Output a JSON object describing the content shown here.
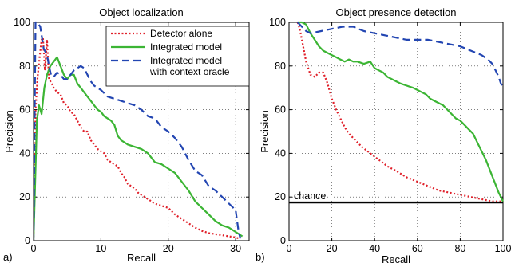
{
  "chart_data": [
    {
      "type": "line",
      "panel_label": "a)",
      "title": "Object localization",
      "xlabel": "Recall",
      "ylabel": "Precision",
      "xlim": [
        0,
        32
      ],
      "ylim": [
        0,
        100
      ],
      "xticks": [
        0,
        10,
        20,
        30
      ],
      "yticks": [
        0,
        20,
        40,
        60,
        80,
        100
      ],
      "grid": true,
      "legend_position": "top-right",
      "series": [
        {
          "name": "Detector alone",
          "style": "dotted",
          "color": "#e0202a",
          "x": [
            0.0,
            0.3,
            0.6,
            0.9,
            1.2,
            1.4,
            1.7,
            2.0,
            2.3,
            2.7,
            3.0,
            3.5,
            4.0,
            4.5,
            5.0,
            5.5,
            6.0,
            6.5,
            7.0,
            7.5,
            8.0,
            8.5,
            9.0,
            9.5,
            10.0,
            10.5,
            11.0,
            11.5,
            12.0,
            12.5,
            13.0,
            13.5,
            14.0,
            14.5,
            15.0,
            15.5,
            16.0,
            16.5,
            17.0,
            17.5,
            18.0,
            19.0,
            20.0,
            21.0,
            22.0,
            23.0,
            24.0,
            25.0,
            26.0,
            27.0,
            28.0,
            29.0,
            30.0,
            30.5
          ],
          "y": [
            0,
            60,
            75,
            84,
            92,
            93,
            78,
            92,
            74,
            72,
            70,
            68,
            67,
            63,
            62,
            59,
            58,
            55,
            52,
            50,
            50,
            46,
            44,
            42,
            41,
            40,
            37,
            36,
            35,
            34,
            31,
            29,
            26,
            25,
            24,
            22,
            21,
            20,
            19,
            18,
            17,
            16,
            15,
            12,
            10,
            8,
            6,
            4.5,
            3.5,
            3,
            2.5,
            2,
            1.5,
            1
          ]
        },
        {
          "name": "Integrated model",
          "style": "solid",
          "color": "#3cb534",
          "x": [
            0.0,
            0.5,
            0.8,
            1.2,
            1.6,
            2.0,
            2.5,
            3.0,
            3.5,
            4.0,
            4.5,
            5.0,
            5.5,
            6.0,
            6.5,
            7.0,
            7.5,
            8.0,
            8.5,
            9.0,
            9.5,
            10.0,
            10.5,
            11.0,
            11.5,
            12.0,
            12.5,
            13.0,
            13.5,
            14.0,
            15.0,
            16.0,
            17.0,
            18.0,
            19.0,
            20.0,
            21.0,
            22.0,
            23.0,
            24.0,
            25.0,
            26.0,
            27.0,
            28.0,
            29.0,
            30.0,
            31.0
          ],
          "y": [
            0,
            55,
            62,
            58,
            70,
            76,
            80,
            82,
            84,
            80,
            76,
            74,
            76,
            76,
            72,
            70,
            68,
            66,
            64,
            62,
            60,
            59,
            57,
            56,
            55,
            53,
            48,
            46,
            45,
            44,
            43,
            42,
            40,
            36,
            35,
            33,
            31,
            27,
            23,
            18,
            15,
            12,
            9,
            7,
            6,
            4,
            2
          ]
        },
        {
          "name": "Integrated model\nwith context oracle",
          "style": "dashed",
          "color": "#2346b2",
          "x": [
            0.0,
            0.3,
            0.6,
            1.0,
            1.5,
            2.0,
            2.3,
            2.6,
            3.0,
            3.5,
            4.0,
            4.5,
            5.0,
            6.0,
            7.0,
            7.5,
            8.0,
            8.5,
            9.0,
            9.5,
            10.0,
            11.0,
            12.0,
            13.0,
            14.0,
            15.0,
            16.0,
            17.0,
            18.0,
            19.0,
            20.0,
            21.0,
            22.0,
            23.0,
            24.0,
            25.0,
            26.0,
            27.0,
            28.0,
            29.0,
            30.0,
            30.4,
            30.7
          ],
          "y": [
            0,
            100,
            100,
            98,
            88,
            85,
            80,
            76,
            75,
            77,
            76,
            74,
            74,
            78,
            80,
            79,
            76,
            73,
            71,
            70,
            69,
            66,
            65,
            64,
            63,
            62,
            60,
            57,
            56,
            52,
            50,
            47,
            43,
            37,
            32,
            30,
            25,
            23,
            20,
            17,
            14,
            5,
            1
          ]
        }
      ]
    },
    {
      "type": "line",
      "panel_label": "b)",
      "title": "Object presence detection",
      "xlabel": "Recall",
      "ylabel": "Precision",
      "xlim": [
        0,
        100
      ],
      "ylim": [
        0,
        100
      ],
      "xticks": [
        0,
        20,
        40,
        60,
        80,
        100
      ],
      "yticks": [
        0,
        20,
        40,
        60,
        80,
        100
      ],
      "grid": true,
      "reference_line": {
        "label": "chance",
        "y": 17.5
      },
      "series": [
        {
          "name": "Detector alone",
          "style": "dotted",
          "color": "#e0202a",
          "x": [
            4,
            5,
            6,
            8,
            10,
            12,
            14,
            16,
            18,
            20,
            22,
            24,
            26,
            28,
            30,
            34,
            38,
            42,
            46,
            50,
            55,
            60,
            65,
            70,
            75,
            80,
            85,
            90,
            95,
            99
          ],
          "y": [
            100,
            97,
            92,
            82,
            76,
            75,
            77,
            77,
            72,
            65,
            60,
            56,
            52,
            49,
            47,
            43,
            40,
            37,
            34,
            32,
            29,
            27,
            25,
            23,
            22,
            21,
            20,
            19,
            18,
            18
          ]
        },
        {
          "name": "Integrated model",
          "style": "solid",
          "color": "#3cb534",
          "x": [
            4,
            6,
            8,
            10,
            12,
            14,
            16,
            18,
            20,
            22,
            24,
            26,
            28,
            30,
            32,
            35,
            38,
            40,
            42,
            44,
            46,
            48,
            50,
            52,
            55,
            58,
            60,
            62,
            64,
            66,
            68,
            70,
            72,
            74,
            76,
            78,
            80,
            82,
            84,
            86,
            88,
            90,
            92,
            94,
            96,
            98,
            100
          ],
          "y": [
            100,
            100,
            99,
            95,
            92,
            89,
            87,
            86,
            85,
            84,
            83,
            82,
            83,
            82,
            82,
            81,
            82,
            79,
            78,
            77,
            75,
            74,
            73,
            72,
            71,
            70,
            69,
            68,
            67,
            65,
            64,
            63,
            62,
            60,
            58,
            56,
            55,
            53,
            51,
            49,
            45,
            41,
            37,
            32,
            27,
            22,
            18
          ]
        },
        {
          "name": "Integrated model\nwith context oracle",
          "style": "dashed",
          "color": "#2346b2",
          "x": [
            4,
            6,
            8,
            10,
            15,
            20,
            25,
            30,
            35,
            40,
            45,
            50,
            55,
            60,
            65,
            70,
            75,
            80,
            85,
            90,
            93,
            95,
            97,
            98,
            99,
            100
          ],
          "y": [
            100,
            98,
            96,
            95,
            96,
            97,
            98,
            98,
            96,
            95,
            94,
            93,
            92,
            92,
            92,
            91,
            90,
            89,
            87,
            85,
            83,
            81,
            77,
            75,
            72,
            70
          ]
        }
      ]
    }
  ]
}
